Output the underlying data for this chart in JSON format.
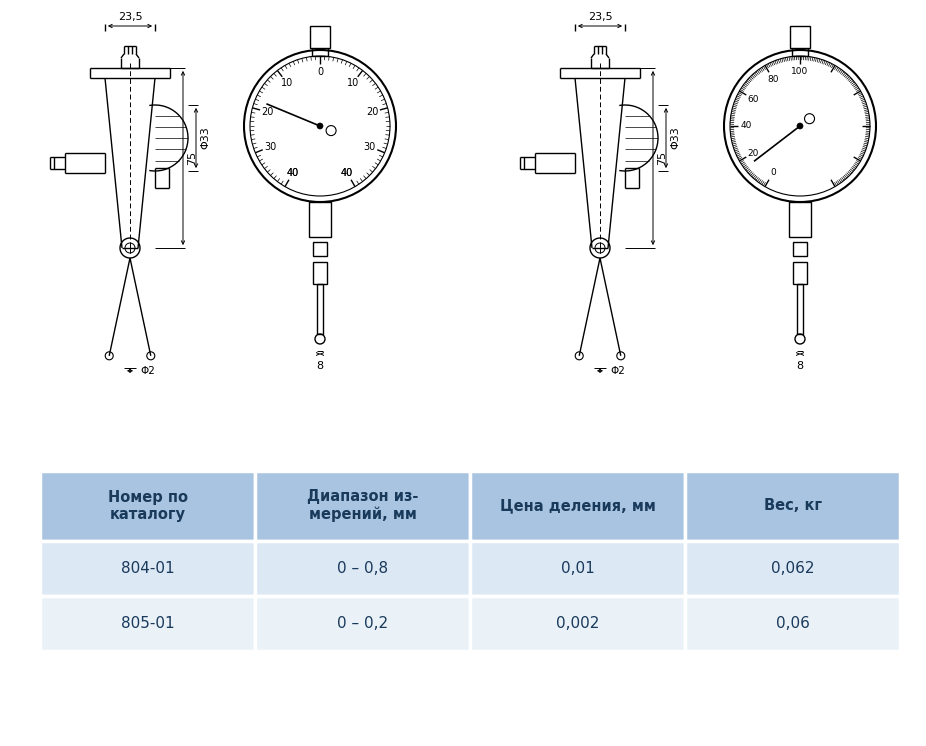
{
  "bg_color": "#ffffff",
  "table_header_color": "#a8c4e0",
  "table_row1_color": "#dce8f3",
  "table_row2_color": "#eaf2f8",
  "table_cols": [
    "Номер по\nкаталогу",
    "Диапазон из-\nмерений, мм",
    "Цена деления, мм",
    "Вес, кг"
  ],
  "table_data": [
    [
      "804-01",
      "0 – 0,8",
      "0,01",
      "0,062"
    ],
    [
      "805-01",
      "0 – 0,2",
      "0,002",
      "0,06"
    ]
  ],
  "dim_23_5": "23,5",
  "dim_phi33": "Φ33",
  "dim_75": "75",
  "dim_phi2": "Φ2",
  "dim_8": "8"
}
